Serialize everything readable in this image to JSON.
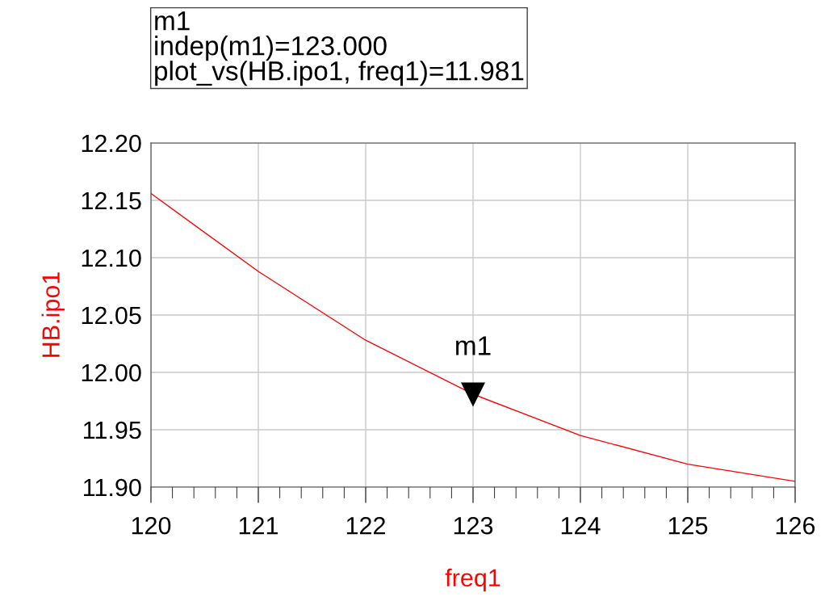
{
  "chart_data": {
    "type": "line",
    "xlabel": "freq1",
    "ylabel": "HB.ipo1",
    "x": [
      120,
      121,
      122,
      123,
      124,
      125,
      126
    ],
    "series": [
      {
        "color": "#ff0000",
        "values": [
          12.156,
          12.088,
          12.028,
          11.981,
          11.945,
          11.92,
          11.905
        ]
      }
    ],
    "xlim": [
      120,
      126
    ],
    "xticks": [
      120,
      121,
      122,
      123,
      124,
      125,
      126
    ],
    "ylim": [
      11.9,
      12.2
    ],
    "yticks": [
      {
        "value": 11.9,
        "label": "11.90"
      },
      {
        "value": 11.95,
        "label": "11.95"
      },
      {
        "value": 12.0,
        "label": "12.00"
      },
      {
        "value": 12.05,
        "label": "12.05"
      },
      {
        "value": 12.1,
        "label": "12.10"
      },
      {
        "value": 12.15,
        "label": "12.15"
      },
      {
        "value": 12.2,
        "label": "12.20"
      }
    ],
    "grid": true,
    "marker": "none",
    "line_style": "solid",
    "annotations": [
      "m1\nindep(m1)=123.000\nplot_vs(HB.ipo1, freq1)=11.981",
      {
        "text": "m1",
        "x": 123,
        "y": 11.981
      }
    ]
  }
}
